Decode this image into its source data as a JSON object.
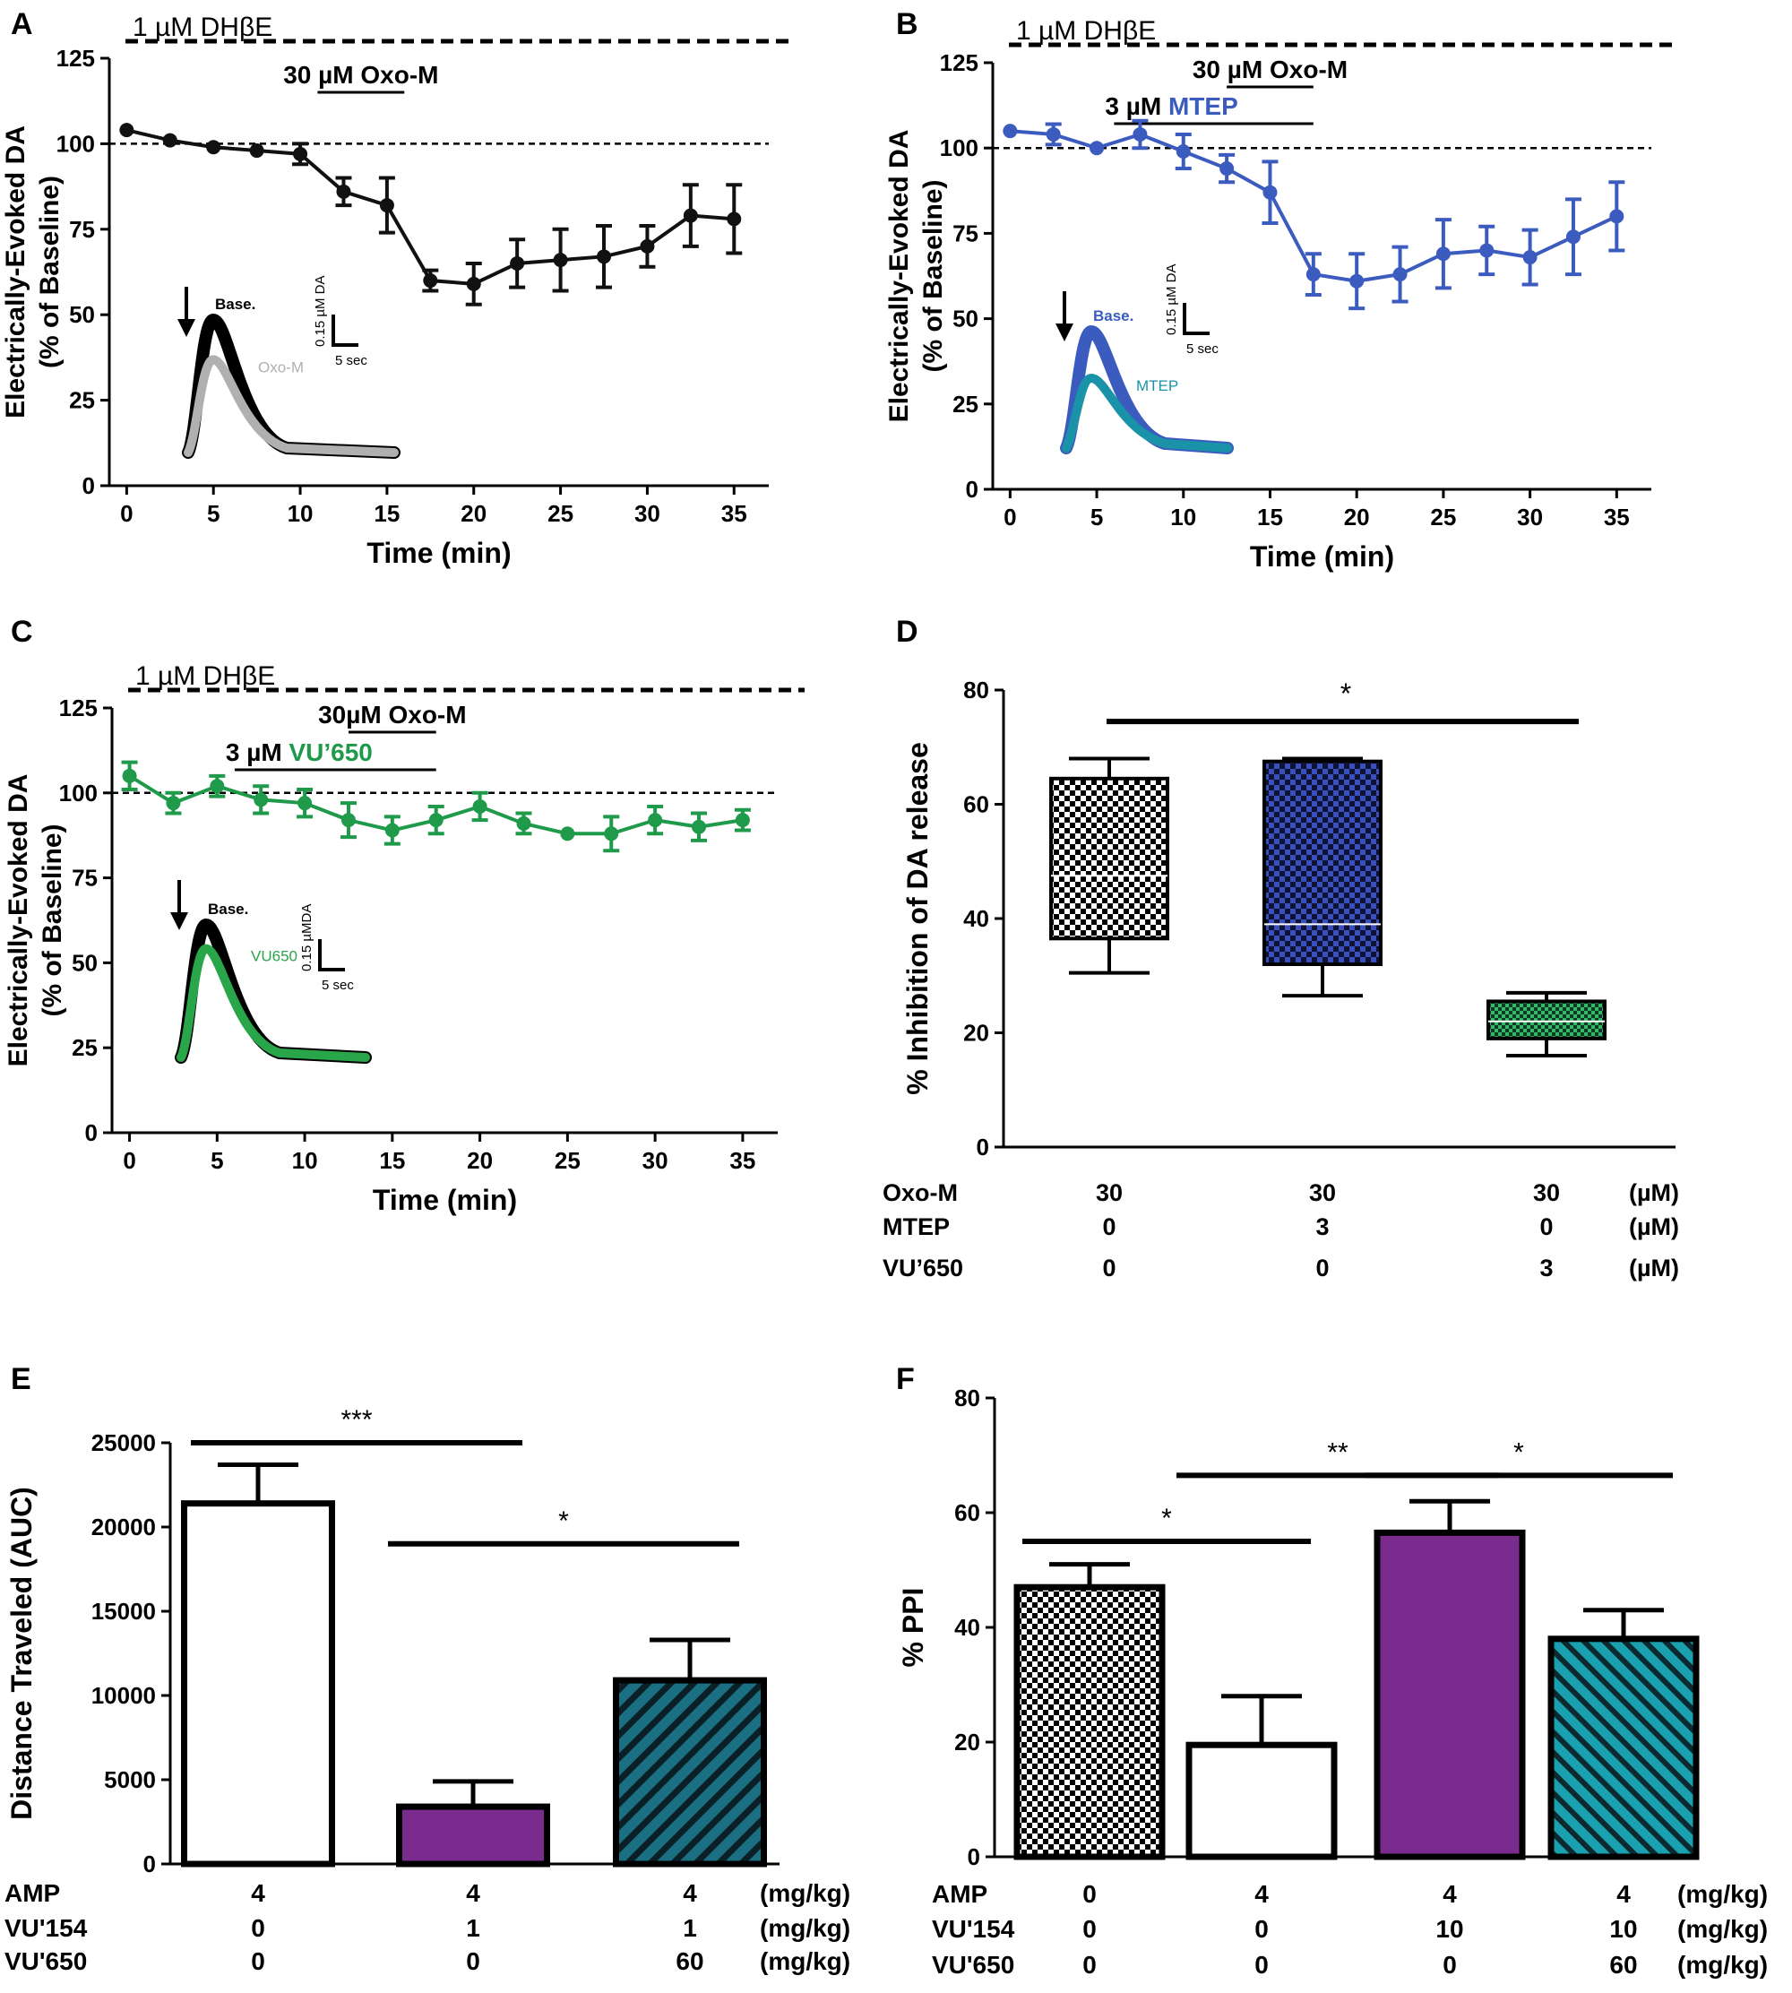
{
  "chart_data": [
    {
      "panel": "A",
      "type": "line",
      "ylabel_line1": "Electrically-Evoked DA",
      "ylabel_line2": "(% of Baseline)",
      "xlabel": "Time (min)",
      "xlim": [
        -1,
        37
      ],
      "ylim": [
        0,
        125
      ],
      "xticks": [
        0,
        5,
        10,
        15,
        20,
        25,
        30,
        35
      ],
      "yticks": [
        0,
        25,
        50,
        75,
        100,
        125
      ],
      "baseline": 100,
      "color": "#111111",
      "x": [
        0,
        2.5,
        5,
        7.5,
        10,
        12.5,
        15,
        17.5,
        20,
        22.5,
        25,
        27.5,
        30,
        32.5,
        35
      ],
      "y": [
        104,
        101,
        99,
        98,
        97,
        86,
        82,
        60,
        59,
        65,
        66,
        67,
        70,
        79,
        78
      ],
      "err": [
        0,
        0,
        0,
        0,
        3,
        4,
        8,
        3,
        6,
        7,
        9,
        9,
        6,
        9,
        10
      ],
      "drug_bars": [
        {
          "label": "1 µM DHβE",
          "dashed": true,
          "start": 0,
          "end": 38,
          "level": "top"
        },
        {
          "label": "30 µM Oxo-M",
          "dashed": false,
          "start": 11,
          "end": 16,
          "level": "1"
        }
      ],
      "inset": {
        "traces": [
          {
            "label": "Base.",
            "color": "#000000",
            "peak": 1.0
          },
          {
            "label": "Oxo-M",
            "color": "#b0b0b0",
            "peak": 0.7
          }
        ],
        "scale_y": "0.15 µM DA",
        "scale_x": "5 sec"
      }
    },
    {
      "panel": "B",
      "type": "line",
      "ylabel_line1": "Electrically-Evoked DA",
      "ylabel_line2": "(% of Baseline)",
      "xlabel": "Time (min)",
      "xlim": [
        -1,
        37
      ],
      "ylim": [
        0,
        125
      ],
      "xticks": [
        0,
        5,
        10,
        15,
        20,
        25,
        30,
        35
      ],
      "yticks": [
        0,
        25,
        50,
        75,
        100,
        125
      ],
      "baseline": 100,
      "color": "#3b5bbf",
      "x": [
        0,
        2.5,
        5,
        7.5,
        10,
        12.5,
        15,
        17.5,
        20,
        22.5,
        25,
        27.5,
        30,
        32.5,
        35
      ],
      "y": [
        105,
        104,
        100,
        104,
        99,
        94,
        87,
        63,
        61,
        63,
        69,
        70,
        68,
        74,
        80
      ],
      "err": [
        0,
        3,
        0,
        4,
        5,
        4,
        9,
        6,
        8,
        8,
        10,
        7,
        8,
        11,
        10
      ],
      "drug_bars": [
        {
          "label": "1 µM DHβE",
          "dashed": true,
          "start": 0,
          "end": 38,
          "level": "top"
        },
        {
          "label": "30 µM Oxo-M",
          "dashed": false,
          "start": 12.5,
          "end": 17.5,
          "level": "1"
        },
        {
          "label_prefix": "3 µM",
          "label": "MTEP",
          "label_color": "#3b5bbf",
          "dashed": false,
          "start": 6,
          "end": 17.5,
          "level": "2"
        }
      ],
      "inset": {
        "traces": [
          {
            "label": "Base.",
            "color": "#3b5bbf",
            "peak": 1.0
          },
          {
            "label": "MTEP",
            "color": "#1a93a8",
            "peak": 0.6
          }
        ],
        "scale_y": "0.15 µM DA",
        "scale_x": "5 sec"
      }
    },
    {
      "panel": "C",
      "type": "line",
      "ylabel_line1": "Electrically-Evoked DA",
      "ylabel_line2": "(% of Baseline)",
      "xlabel": "Time (min)",
      "xlim": [
        -1,
        37
      ],
      "ylim": [
        0,
        125
      ],
      "xticks": [
        0,
        5,
        10,
        15,
        20,
        25,
        30,
        35
      ],
      "yticks": [
        0,
        25,
        50,
        75,
        100,
        125
      ],
      "baseline": 100,
      "color": "#1e9a4a",
      "x": [
        0,
        2.5,
        5,
        7.5,
        10,
        12.5,
        15,
        17.5,
        20,
        22.5,
        25,
        27.5,
        30,
        32.5,
        35
      ],
      "y": [
        105,
        97,
        102,
        98,
        97,
        92,
        89,
        92,
        96,
        91,
        88,
        88,
        92,
        90,
        92
      ],
      "err": [
        4,
        3,
        3,
        4,
        4,
        5,
        4,
        4,
        4,
        3,
        0,
        5,
        4,
        4,
        3
      ],
      "drug_bars": [
        {
          "label": "1 µM DHβE",
          "dashed": true,
          "start": 0,
          "end": 38,
          "level": "top"
        },
        {
          "label": "30µM Oxo-M",
          "dashed": false,
          "start": 12.5,
          "end": 17.5,
          "level": "1"
        },
        {
          "label_prefix": "3 µM",
          "label": "VU’650",
          "label_color": "#1e9a4a",
          "dashed": false,
          "start": 6,
          "end": 17.5,
          "level": "2"
        }
      ],
      "inset": {
        "traces": [
          {
            "label": "Base.",
            "color": "#000000",
            "peak": 1.0
          },
          {
            "label": "VU650",
            "color": "#2aa64a",
            "peak": 0.82
          }
        ],
        "scale_y": "0.15 µMDA",
        "scale_x": "5 sec"
      }
    },
    {
      "panel": "D",
      "type": "box",
      "ylabel": "%  Inhibition of  DA release",
      "ylim": [
        0,
        80
      ],
      "yticks": [
        0,
        20,
        40,
        60,
        80
      ],
      "boxes": [
        {
          "min": 30.5,
          "q1": 36.5,
          "median": 47.5,
          "q3": 64.5,
          "max": 68,
          "fill": "checker-black"
        },
        {
          "min": 26.5,
          "q1": 32,
          "median": 39,
          "q3": 67.5,
          "max": 68,
          "fill": "checker-blue"
        },
        {
          "min": 16,
          "q1": 19,
          "median": 22,
          "q3": 25.5,
          "max": 27,
          "fill": "checker-green"
        }
      ],
      "significance": [
        {
          "from": 0,
          "to": 2,
          "label": "*",
          "y": 74.5
        }
      ],
      "conditions": [
        {
          "label": "Oxo-M",
          "values": [
            "30",
            "30",
            "30"
          ],
          "unit": "(µM)"
        },
        {
          "label": "MTEP",
          "values": [
            "0",
            "3",
            "0"
          ],
          "unit": "(µM)"
        },
        {
          "label": "VU’650",
          "values": [
            "0",
            "0",
            "3"
          ],
          "unit": "(µM)"
        }
      ]
    },
    {
      "panel": "E",
      "type": "bar",
      "ylabel": "Distance Traveled (AUC)",
      "ylim": [
        0,
        25000
      ],
      "yticks": [
        0,
        5000,
        10000,
        15000,
        20000,
        25000
      ],
      "values": [
        21400,
        3400,
        10900
      ],
      "errors": [
        2300,
        1500,
        2400
      ],
      "fills": [
        "white",
        "#7a2c8e",
        "hatch-teal"
      ],
      "significance": [
        {
          "from": 0,
          "to": 1,
          "label": "***",
          "y": 25000
        },
        {
          "from": 1,
          "to": 2,
          "label": "*",
          "y": 19000
        }
      ],
      "conditions": [
        {
          "label": "AMP",
          "values": [
            "4",
            "4",
            "4"
          ],
          "unit": "(mg/kg)"
        },
        {
          "label": "VU'154",
          "values": [
            "0",
            "1",
            "1"
          ],
          "unit": "(mg/kg)"
        },
        {
          "label": "VU'650",
          "values": [
            "0",
            "0",
            "60"
          ],
          "unit": "(mg/kg)"
        }
      ]
    },
    {
      "panel": "F",
      "type": "bar",
      "ylabel": "% PPI",
      "ylim": [
        0,
        80
      ],
      "yticks": [
        0,
        20,
        40,
        60,
        80
      ],
      "values": [
        47,
        19.5,
        56.5,
        38
      ],
      "errors": [
        4,
        8.5,
        5.5,
        5
      ],
      "fills": [
        "checker-black",
        "white",
        "#7a2c8e",
        "hatch-teal2"
      ],
      "significance": [
        {
          "from": 0,
          "to": 1,
          "label": "*",
          "y": 55
        },
        {
          "from": 1,
          "to": 2,
          "label": "**",
          "y": 66.5
        },
        {
          "from": 2,
          "to": 3,
          "label": "*",
          "y": 66.5
        }
      ],
      "conditions": [
        {
          "label": "AMP",
          "values": [
            "0",
            "4",
            "4",
            "4"
          ],
          "unit": "(mg/kg)"
        },
        {
          "label": "VU'154",
          "values": [
            "0",
            "0",
            "10",
            "10"
          ],
          "unit": "(mg/kg)"
        },
        {
          "label": "VU'650",
          "values": [
            "0",
            "0",
            "0",
            "60"
          ],
          "unit": "(mg/kg)"
        }
      ]
    }
  ]
}
